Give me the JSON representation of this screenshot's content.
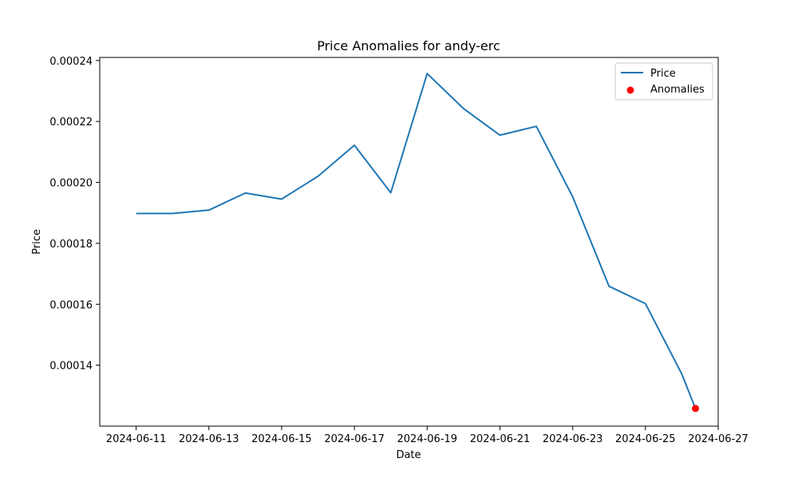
{
  "chart_data": {
    "type": "line",
    "title": "Price Anomalies for andy-erc",
    "xlabel": "Date",
    "ylabel": "Price",
    "xlim": [
      "2024-06-10",
      "2024-06-27"
    ],
    "ylim": [
      0.00012,
      0.000241
    ],
    "x_ticks": [
      "2024-06-11",
      "2024-06-13",
      "2024-06-15",
      "2024-06-17",
      "2024-06-19",
      "2024-06-21",
      "2024-06-23",
      "2024-06-25",
      "2024-06-27"
    ],
    "y_ticks": [
      "0.00014",
      "0.00016",
      "0.00018",
      "0.00020",
      "0.00022",
      "0.00024"
    ],
    "grid": false,
    "legend_position": "top-right",
    "series": [
      {
        "name": "Price",
        "style": "line",
        "color": "#1f77b4",
        "x": [
          "2024-06-11",
          "2024-06-12",
          "2024-06-13",
          "2024-06-14",
          "2024-06-15",
          "2024-06-16",
          "2024-06-17",
          "2024-06-18",
          "2024-06-19",
          "2024-06-20",
          "2024-06-21",
          "2024-06-22",
          "2024-06-23",
          "2024-06-24",
          "2024-06-25",
          "2024-06-26",
          "2024-06-26 09:00"
        ],
        "values": [
          0.0001898,
          0.0001898,
          0.0001909,
          0.0001965,
          0.0001945,
          0.000202,
          0.0002122,
          0.0001966,
          0.0002357,
          0.0002242,
          0.0002155,
          0.0002184,
          0.0001953,
          0.0001659,
          0.0001602,
          0.0001371,
          0.0001258
        ]
      },
      {
        "name": "Anomalies",
        "style": "scatter",
        "color": "#ff0000",
        "x": [
          "2024-06-26 09:00"
        ],
        "values": [
          0.0001258
        ]
      }
    ]
  }
}
